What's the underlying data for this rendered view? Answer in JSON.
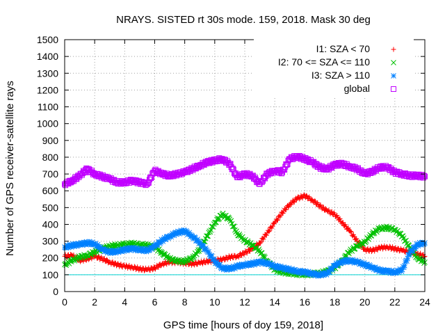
{
  "chart_data": {
    "type": "scatter",
    "title": "NRAYS. SISTED rt 30s mode. 159, 2018. Mask 30 deg",
    "xlabel": "GPS time [hours of doy 159, 2018]",
    "ylabel": "Number of GPS receiver-satellite rays",
    "xlim": [
      0,
      24
    ],
    "ylim": [
      0,
      1500
    ],
    "xticks": [
      0,
      2,
      4,
      6,
      8,
      10,
      12,
      14,
      16,
      18,
      20,
      22,
      24
    ],
    "yticks": [
      0,
      100,
      200,
      300,
      400,
      500,
      600,
      700,
      800,
      900,
      1000,
      1100,
      1200,
      1300,
      1400,
      1500
    ],
    "grid": true,
    "legend_position": "top-right",
    "threshold_line": {
      "value": 100,
      "color": "#00d0d0"
    },
    "series": [
      {
        "name": "I1: SZA < 70",
        "marker": "plus",
        "color": "#ff0000",
        "x": [
          0,
          0.5,
          1,
          1.5,
          2,
          2.5,
          3,
          3.5,
          4,
          4.5,
          5,
          5.5,
          6,
          6.5,
          7,
          7.5,
          8,
          8.5,
          9,
          9.5,
          10,
          10.5,
          11,
          11.5,
          12,
          12.5,
          13,
          13.5,
          14,
          14.5,
          15,
          15.5,
          16,
          16.5,
          17,
          17.5,
          18,
          18.5,
          19,
          19.5,
          20,
          20.5,
          21,
          21.5,
          22,
          22.5,
          23,
          23.5,
          24
        ],
        "y": [
          210,
          215,
          185,
          195,
          210,
          195,
          175,
          160,
          150,
          145,
          135,
          130,
          140,
          165,
          175,
          175,
          170,
          165,
          170,
          180,
          185,
          190,
          205,
          210,
          230,
          255,
          290,
          350,
          410,
          470,
          520,
          555,
          570,
          545,
          510,
          480,
          460,
          410,
          360,
          300,
          250,
          245,
          260,
          265,
          255,
          245,
          235,
          225,
          210
        ]
      },
      {
        "name": "I2: 70 <= SZA <= 110",
        "marker": "x",
        "color": "#00c000",
        "x": [
          0,
          0.5,
          1,
          1.5,
          2,
          2.5,
          3,
          3.5,
          4,
          4.5,
          5,
          5.5,
          6,
          6.5,
          7,
          7.5,
          8,
          8.5,
          9,
          9.5,
          10,
          10.5,
          11,
          11.5,
          12,
          12.5,
          13,
          13.5,
          14,
          14.5,
          15,
          15.5,
          16,
          16.5,
          17,
          17.5,
          18,
          18.5,
          19,
          19.5,
          20,
          20.5,
          21,
          21.5,
          22,
          22.5,
          23,
          23.5,
          24
        ],
        "y": [
          160,
          185,
          205,
          215,
          235,
          255,
          270,
          275,
          280,
          285,
          280,
          275,
          265,
          230,
          195,
          180,
          180,
          200,
          250,
          330,
          410,
          460,
          430,
          345,
          305,
          275,
          240,
          180,
          130,
          115,
          110,
          105,
          100,
          105,
          110,
          120,
          140,
          185,
          240,
          270,
          295,
          345,
          375,
          380,
          370,
          330,
          260,
          200,
          175
        ]
      },
      {
        "name": "I3: SZA > 110",
        "marker": "asterisk",
        "color": "#0080ff",
        "x": [
          0,
          0.5,
          1,
          1.5,
          2,
          2.5,
          3,
          3.5,
          4,
          4.5,
          5,
          5.5,
          6,
          6.5,
          7,
          7.5,
          8,
          8.5,
          9,
          9.5,
          10,
          10.5,
          11,
          11.5,
          12,
          12.5,
          13,
          13.5,
          14,
          14.5,
          15,
          15.5,
          16,
          16.5,
          17,
          17.5,
          18,
          18.5,
          19,
          19.5,
          20,
          20.5,
          21,
          21.5,
          22,
          22.5,
          23,
          23.5,
          24
        ],
        "y": [
          265,
          275,
          280,
          290,
          285,
          250,
          235,
          240,
          250,
          255,
          250,
          245,
          270,
          305,
          330,
          350,
          360,
          330,
          290,
          240,
          180,
          140,
          135,
          150,
          160,
          165,
          175,
          170,
          150,
          140,
          130,
          120,
          115,
          105,
          100,
          110,
          155,
          180,
          185,
          175,
          160,
          145,
          125,
          120,
          115,
          130,
          230,
          280,
          290
        ]
      },
      {
        "name": "global",
        "marker": "square",
        "color": "#c000ff",
        "x": [
          0,
          0.5,
          1,
          1.5,
          2,
          2.5,
          3,
          3.5,
          4,
          4.5,
          5,
          5.5,
          6,
          6.5,
          7,
          7.5,
          8,
          8.5,
          9,
          9.5,
          10,
          10.5,
          11,
          11.5,
          12,
          12.5,
          13,
          13.5,
          14,
          14.5,
          15,
          15.5,
          16,
          16.5,
          17,
          17.5,
          18,
          18.5,
          19,
          19.5,
          20,
          20.5,
          21,
          21.5,
          22,
          22.5,
          23,
          23.5,
          24
        ],
        "y": [
          640,
          660,
          690,
          730,
          700,
          685,
          670,
          650,
          650,
          660,
          650,
          640,
          720,
          700,
          690,
          700,
          710,
          730,
          750,
          770,
          780,
          790,
          760,
          680,
          700,
          690,
          640,
          700,
          720,
          710,
          790,
          805,
          790,
          770,
          740,
          730,
          755,
          760,
          745,
          730,
          700,
          715,
          740,
          740,
          710,
          700,
          690,
          690,
          685
        ]
      }
    ]
  }
}
